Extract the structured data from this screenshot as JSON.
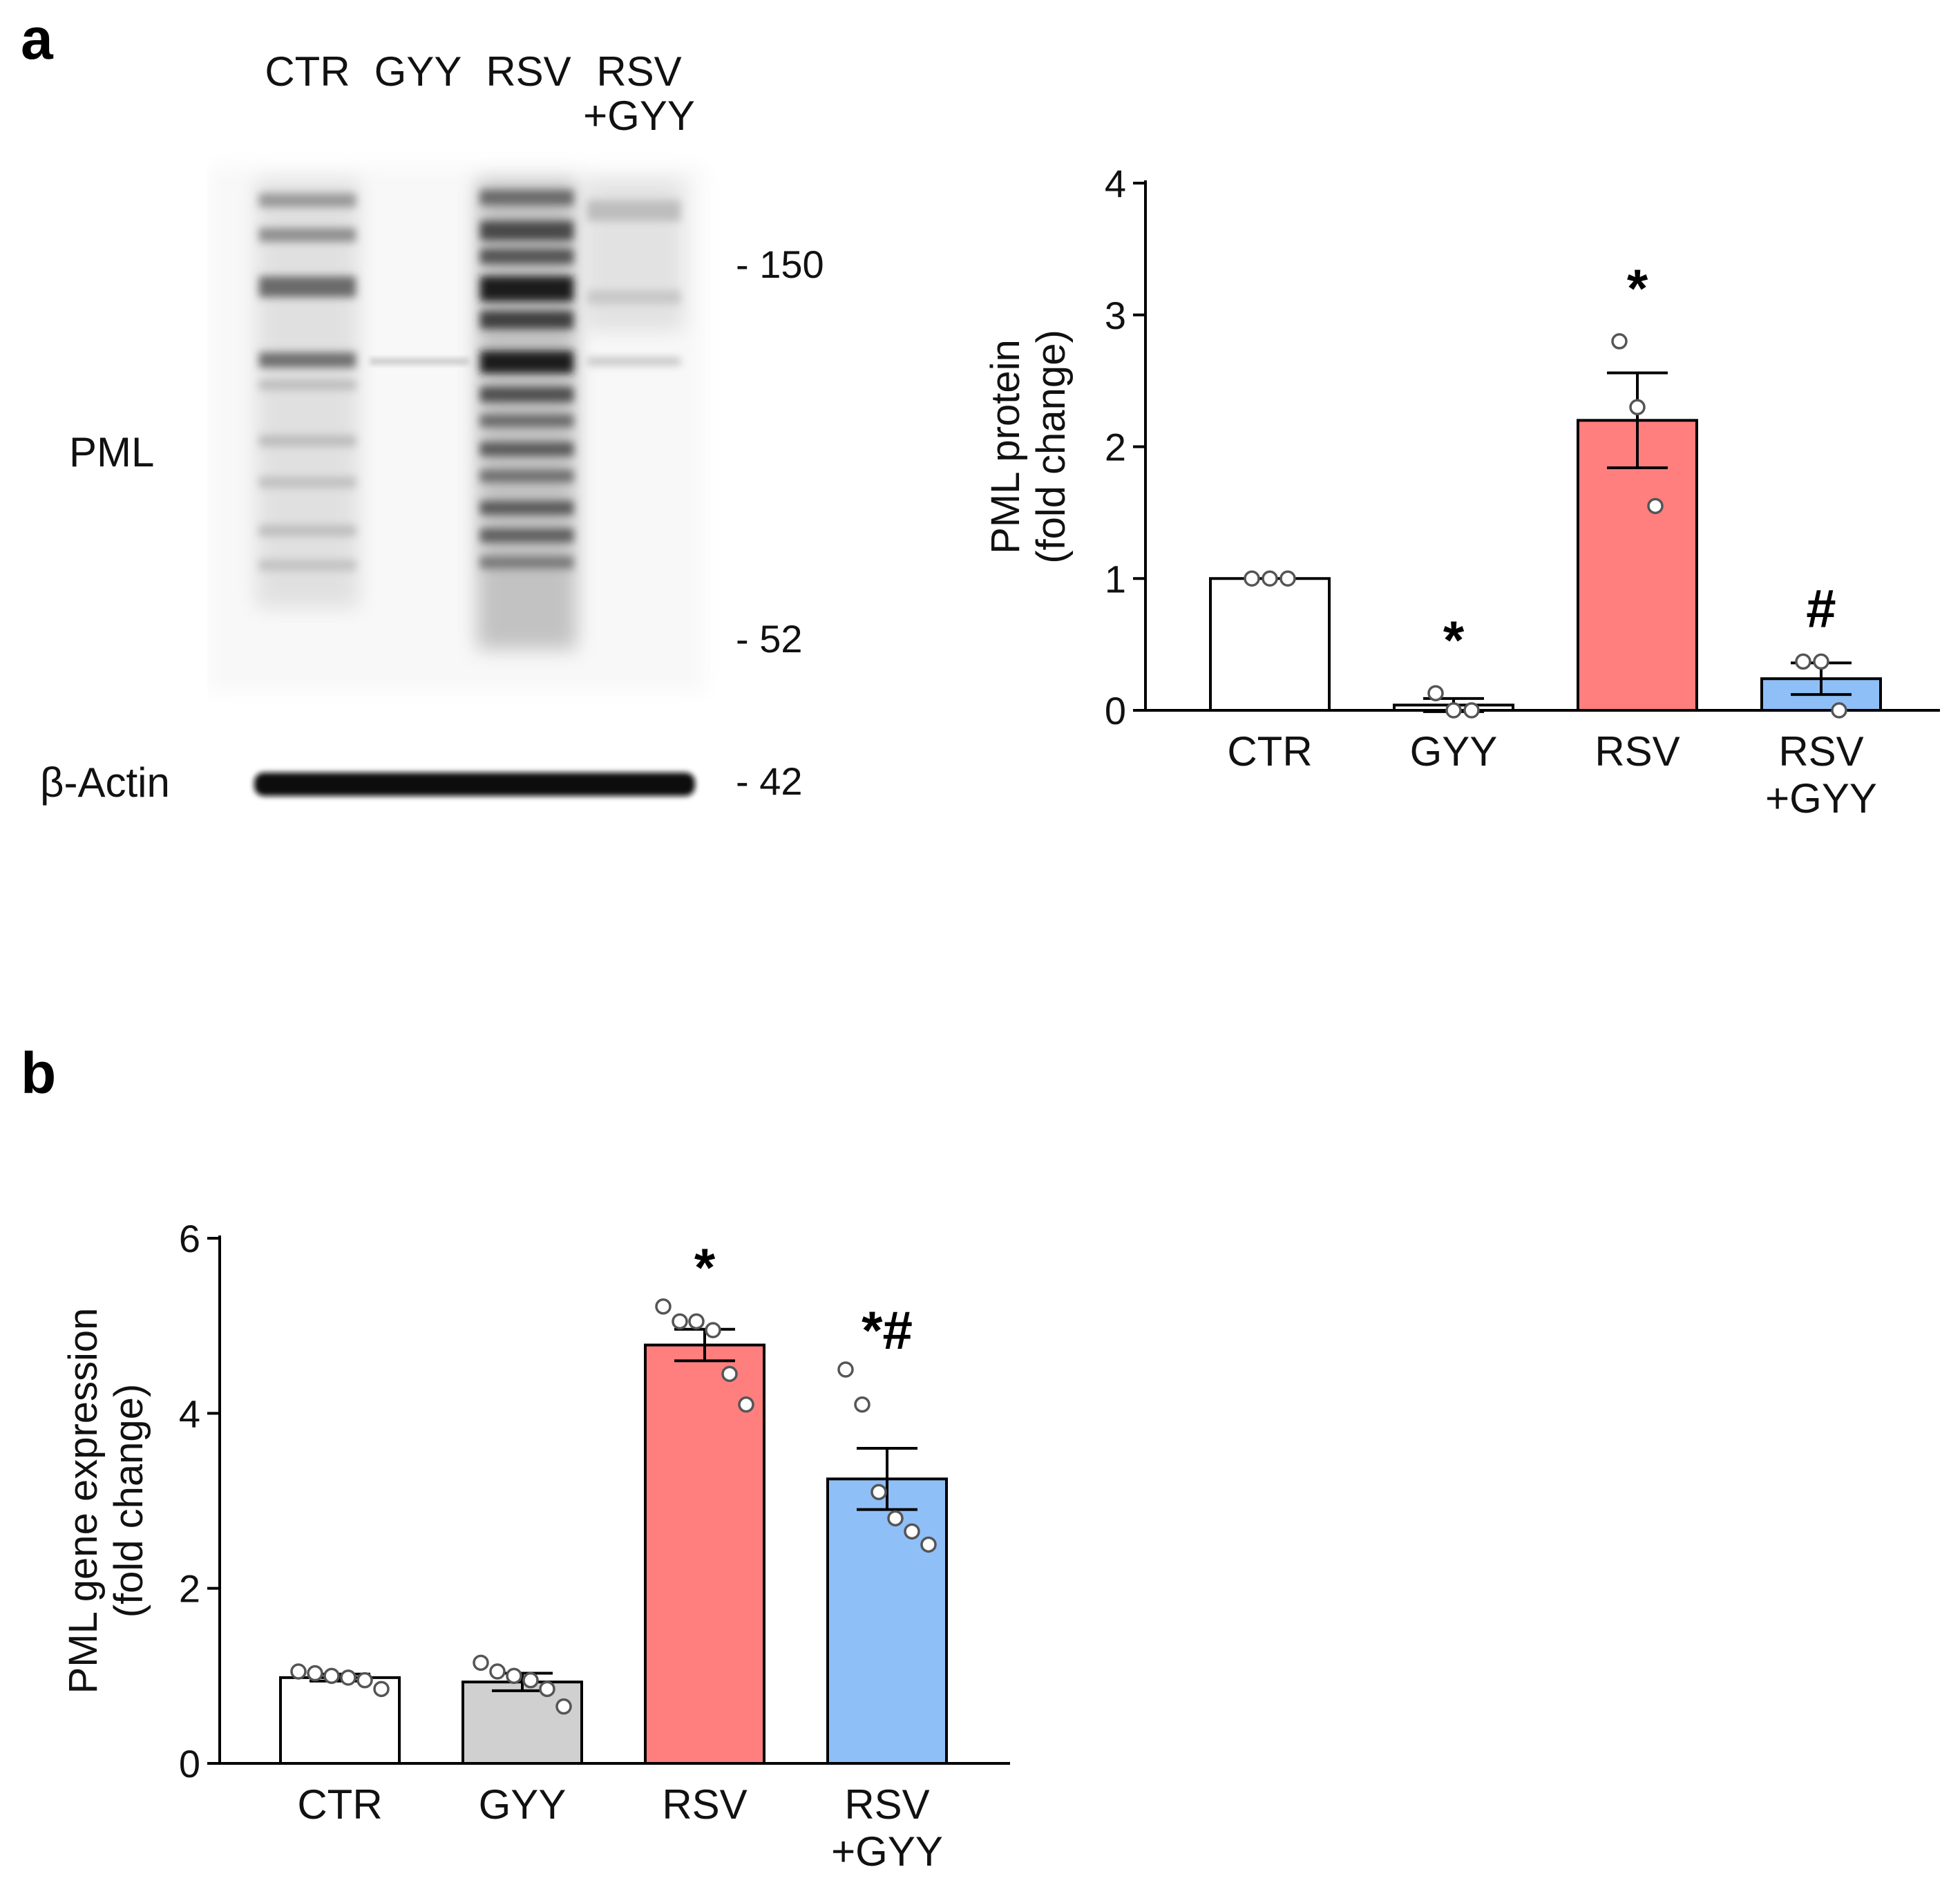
{
  "panels": {
    "a_label": "a",
    "b_label": "b"
  },
  "blot": {
    "lanes": [
      "CTR",
      "GYY",
      "RSV",
      "RSV +GYY"
    ],
    "lane_lines": [
      [
        "CTR"
      ],
      [
        "GYY"
      ],
      [
        "RSV"
      ],
      [
        "RSV",
        "+GYY"
      ]
    ],
    "row_labels": {
      "pml": "PML",
      "actin": "β-Actin"
    },
    "markers": {
      "m150": "- 150",
      "m52": "- 52",
      "m42": "- 42"
    }
  },
  "chart_data": [
    {
      "type": "bar",
      "panel": "a",
      "categories": [
        "CTR",
        "GYY",
        "RSV",
        "RSV +GYY"
      ],
      "category_lines": [
        [
          "CTR"
        ],
        [
          "GYY"
        ],
        [
          "RSV"
        ],
        [
          "RSV",
          "+GYY"
        ]
      ],
      "values": [
        1.0,
        0.04,
        2.2,
        0.24
      ],
      "sem": [
        0.0,
        0.05,
        0.36,
        0.12
      ],
      "points": [
        [
          1.0,
          1.0,
          1.0
        ],
        [
          0.13,
          0.0,
          0.0
        ],
        [
          2.8,
          2.3,
          1.55
        ],
        [
          0.37,
          0.37,
          0.0
        ]
      ],
      "significance": [
        "",
        "*",
        "*",
        "#"
      ],
      "colors": [
        "#ffffff",
        "#ffffff",
        "#ff7f7f",
        "#8fbff7"
      ],
      "xlabel": "",
      "ylabel_lines": [
        "PML protein",
        "(fold change)"
      ],
      "ylim": [
        0,
        4
      ],
      "yticks": [
        0,
        1,
        2,
        3,
        4
      ],
      "grid": false
    },
    {
      "type": "bar",
      "panel": "b",
      "categories": [
        "CTR",
        "GYY",
        "RSV",
        "RSV +GYY"
      ],
      "category_lines": [
        [
          "CTR"
        ],
        [
          "GYY"
        ],
        [
          "RSV"
        ],
        [
          "RSV",
          "+GYY"
        ]
      ],
      "values": [
        0.98,
        0.93,
        4.78,
        3.25
      ],
      "sem": [
        0.04,
        0.1,
        0.18,
        0.35
      ],
      "points": [
        [
          1.05,
          1.03,
          1.0,
          0.98,
          0.95,
          0.85
        ],
        [
          1.15,
          1.05,
          1.0,
          0.95,
          0.85,
          0.65
        ],
        [
          5.22,
          5.05,
          5.05,
          4.95,
          4.45,
          4.1
        ],
        [
          4.5,
          4.1,
          3.1,
          2.8,
          2.65,
          2.5
        ]
      ],
      "significance": [
        "",
        "",
        "*",
        "*#"
      ],
      "colors": [
        "#ffffff",
        "#d0d0d0",
        "#ff7f7f",
        "#8fbff7"
      ],
      "xlabel": "",
      "ylabel_lines": [
        "PML gene expression",
        "(fold change)"
      ],
      "ylim": [
        0,
        6
      ],
      "yticks": [
        0,
        2,
        4,
        6
      ],
      "grid": false
    }
  ]
}
